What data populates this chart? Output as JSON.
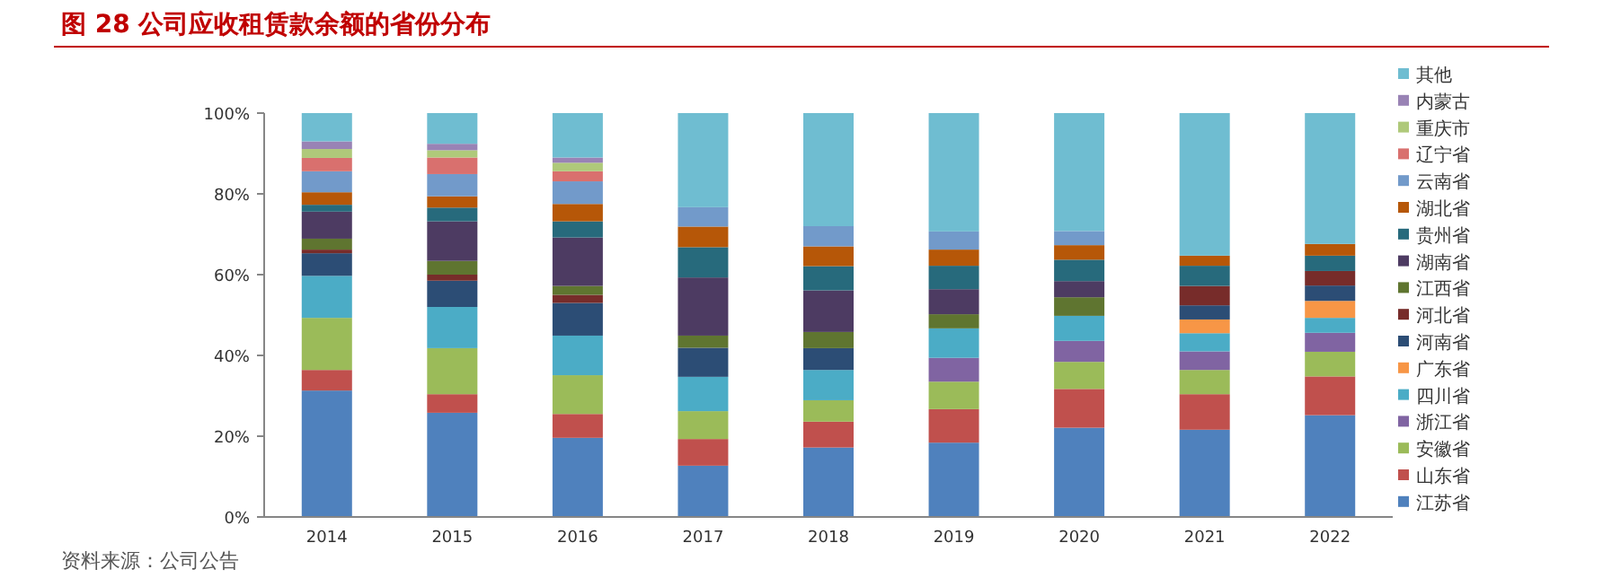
{
  "chart_data": {
    "type": "bar",
    "stacked": true,
    "title": "图 28   公司应收租赁款余额的省份分布",
    "annotations": [
      "资料来源：公司公告"
    ],
    "categories": [
      "2014",
      "2015",
      "2016",
      "2017",
      "2018",
      "2019",
      "2020",
      "2021",
      "2022"
    ],
    "ylim": [
      0,
      100
    ],
    "yticks": [
      {
        "value": 0,
        "label": "0%"
      },
      {
        "value": 20,
        "label": "20%"
      },
      {
        "value": 40,
        "label": "40%"
      },
      {
        "value": 60,
        "label": "60%"
      },
      {
        "value": 80,
        "label": "80%"
      },
      {
        "value": 100,
        "label": "100%"
      }
    ],
    "legend": "right",
    "series": [
      {
        "name": "江苏省",
        "color": "#4f81bd",
        "values": [
          31.3,
          25.8,
          19.6,
          12.7,
          17.2,
          18.4,
          22.1,
          21.6,
          25.2
        ]
      },
      {
        "name": "山东省",
        "color": "#c0504d",
        "values": [
          5.1,
          4.6,
          5.9,
          6.6,
          6.4,
          8.3,
          9.6,
          8.8,
          9.6
        ]
      },
      {
        "name": "安徽省",
        "color": "#9bbb59",
        "values": [
          12.9,
          11.4,
          9.6,
          6.9,
          5.3,
          6.8,
          6.7,
          6.0,
          6.1
        ]
      },
      {
        "name": "浙江省",
        "color": "#8064a2",
        "values": [
          0,
          0,
          0,
          0,
          0,
          5.9,
          5.2,
          4.6,
          4.7
        ]
      },
      {
        "name": "四川省",
        "color": "#4bacc6",
        "values": [
          10.4,
          10.2,
          9.8,
          8.5,
          7.5,
          7.3,
          6.2,
          4.5,
          3.7
        ]
      },
      {
        "name": "广东省",
        "color": "#f79646",
        "values": [
          0,
          0,
          0,
          0,
          0,
          0,
          0,
          3.4,
          4.2
        ]
      },
      {
        "name": "河南省",
        "color": "#2c4d75",
        "values": [
          5.6,
          6.5,
          8.1,
          7.2,
          5.4,
          0,
          0,
          3.5,
          3.8
        ]
      },
      {
        "name": "河北省",
        "color": "#772c2a",
        "values": [
          0.9,
          1.5,
          2.0,
          0,
          0,
          0,
          0,
          4.8,
          3.6
        ]
      },
      {
        "name": "江西省",
        "color": "#5f7530",
        "values": [
          2.7,
          3.4,
          2.2,
          3.0,
          4.0,
          3.5,
          4.6,
          0,
          0
        ]
      },
      {
        "name": "湖南省",
        "color": "#4d3b62",
        "values": [
          6.7,
          9.8,
          12.0,
          14.4,
          10.3,
          6.2,
          4.0,
          0,
          0
        ]
      },
      {
        "name": "贵州省",
        "color": "#276a7c",
        "values": [
          1.7,
          3.4,
          4.0,
          7.5,
          6.0,
          5.8,
          5.3,
          5.0,
          3.8
        ]
      },
      {
        "name": "湖北省",
        "color": "#b65708",
        "values": [
          3.1,
          2.8,
          4.3,
          5.1,
          4.9,
          4.0,
          3.6,
          2.5,
          2.9
        ]
      },
      {
        "name": "云南省",
        "color": "#729aca",
        "values": [
          5.2,
          5.5,
          5.6,
          4.8,
          5.0,
          4.5,
          3.5,
          0,
          0
        ]
      },
      {
        "name": "辽宁省",
        "color": "#d9706e",
        "values": [
          3.3,
          4.1,
          2.5,
          0,
          0,
          0,
          0,
          0,
          0
        ]
      },
      {
        "name": "重庆市",
        "color": "#afc97a",
        "values": [
          2.2,
          1.8,
          2.1,
          0,
          0,
          0,
          0,
          0,
          0
        ]
      },
      {
        "name": "内蒙古",
        "color": "#9983b5",
        "values": [
          1.9,
          1.6,
          1.3,
          0,
          0,
          0,
          0,
          0,
          0
        ]
      },
      {
        "name": "其他",
        "color": "#6fbdd1",
        "values": [
          7.0,
          7.6,
          11.0,
          23.3,
          28.0,
          29.3,
          29.2,
          35.3,
          32.4
        ]
      }
    ]
  }
}
